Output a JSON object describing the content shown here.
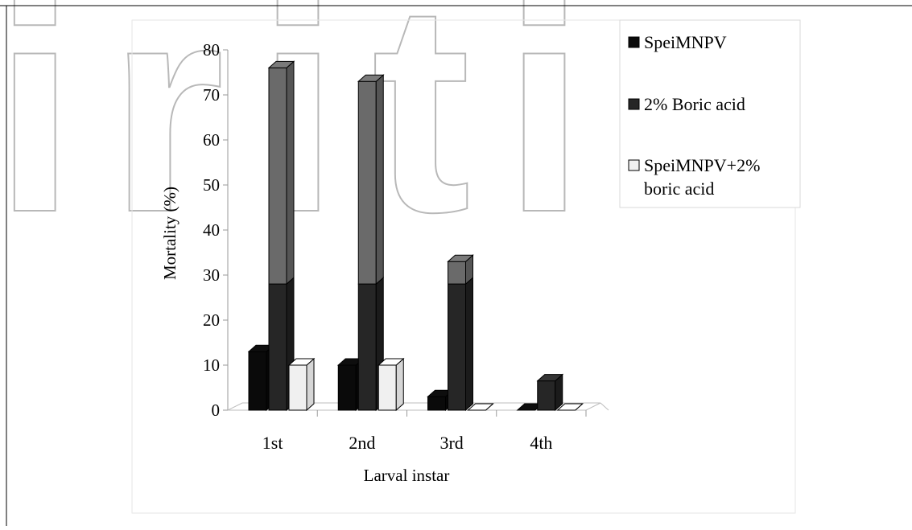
{
  "colors": {
    "speimnpv": "#0a0a0a",
    "boric": "#262626",
    "combo": "#f0f0f0",
    "boric_top_shaded": "#6a6a6a",
    "watermark": "#b8b8b8"
  },
  "watermark": {
    "text": "iriti"
  },
  "chart_data": {
    "type": "bar",
    "title": "",
    "xlabel": "Larval instar",
    "ylabel": "Mortality (%)",
    "ylim": [
      0,
      80
    ],
    "yticks": [
      "0",
      "10",
      "20",
      "30",
      "40",
      "50",
      "60",
      "70",
      "80"
    ],
    "grid": false,
    "legend_position": "right",
    "categories": [
      "1st",
      "2nd",
      "3rd",
      "4th"
    ],
    "series": [
      {
        "name": "SpeiMNPV",
        "values": [
          13,
          10,
          3,
          0
        ]
      },
      {
        "name": "2% Boric acid",
        "values": [
          76,
          73,
          33,
          6.5
        ]
      },
      {
        "name": "SpeiMNPV+2% boric acid",
        "values": [
          10,
          10,
          0,
          0
        ]
      }
    ],
    "legend": {
      "entries": [
        {
          "lines": [
            "SpeiMNPV"
          ],
          "series": 0
        },
        {
          "lines": [
            "2% Boric acid"
          ],
          "series": 1
        },
        {
          "lines": [
            "SpeiMNPV+2%",
            "boric acid"
          ],
          "series": 2
        }
      ]
    }
  }
}
